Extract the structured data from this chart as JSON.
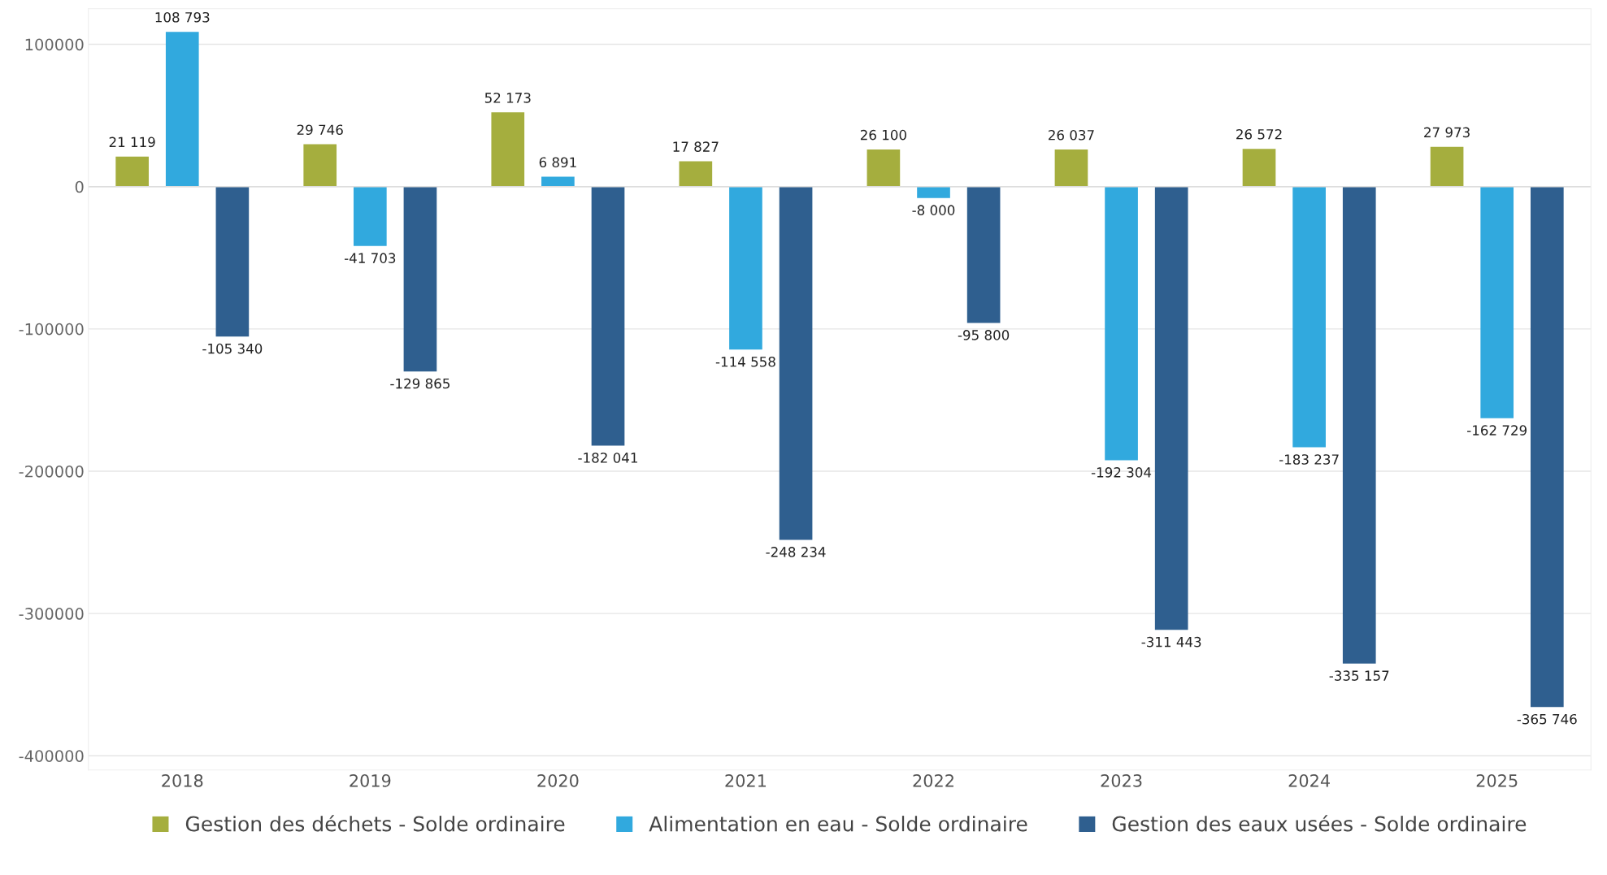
{
  "chart_data": {
    "type": "bar",
    "categories": [
      "2018",
      "2019",
      "2020",
      "2021",
      "2022",
      "2023",
      "2024",
      "2025"
    ],
    "series": [
      {
        "name": "Gestion des déchets - Solde ordinaire",
        "color": "#a5ae3e",
        "values": [
          21119,
          29746,
          52173,
          17827,
          26100,
          26037,
          26572,
          27973
        ],
        "value_labels": [
          "21 119",
          "29 746",
          "52 173",
          "17 827",
          "26 100",
          "26 037",
          "26 572",
          "27 973"
        ]
      },
      {
        "name": "Alimentation en eau - Solde ordinaire",
        "color": "#31a9de",
        "values": [
          108793,
          -41703,
          6891,
          -114558,
          -8000,
          -192304,
          -183237,
          -162729
        ],
        "value_labels": [
          "108 793",
          "-41 703",
          "6 891",
          "-114 558",
          "-8 000",
          "-192 304",
          "-183 237",
          "-162 729"
        ]
      },
      {
        "name": "Gestion des eaux usées - Solde ordinaire",
        "color": "#2f5f8f",
        "values": [
          -105340,
          -129865,
          -182041,
          -248234,
          -95800,
          -311443,
          -335157,
          -365746
        ],
        "value_labels": [
          "-105 340",
          "-129 865",
          "-182 041",
          "-248 234",
          "-95 800",
          "-311 443",
          "-335 157",
          "-365 746"
        ]
      }
    ],
    "ylim": [
      -410000,
      125000
    ],
    "yticks": [
      -400000,
      -300000,
      -200000,
      -100000,
      0,
      100000
    ],
    "grid": "y",
    "legend": "bottom"
  }
}
